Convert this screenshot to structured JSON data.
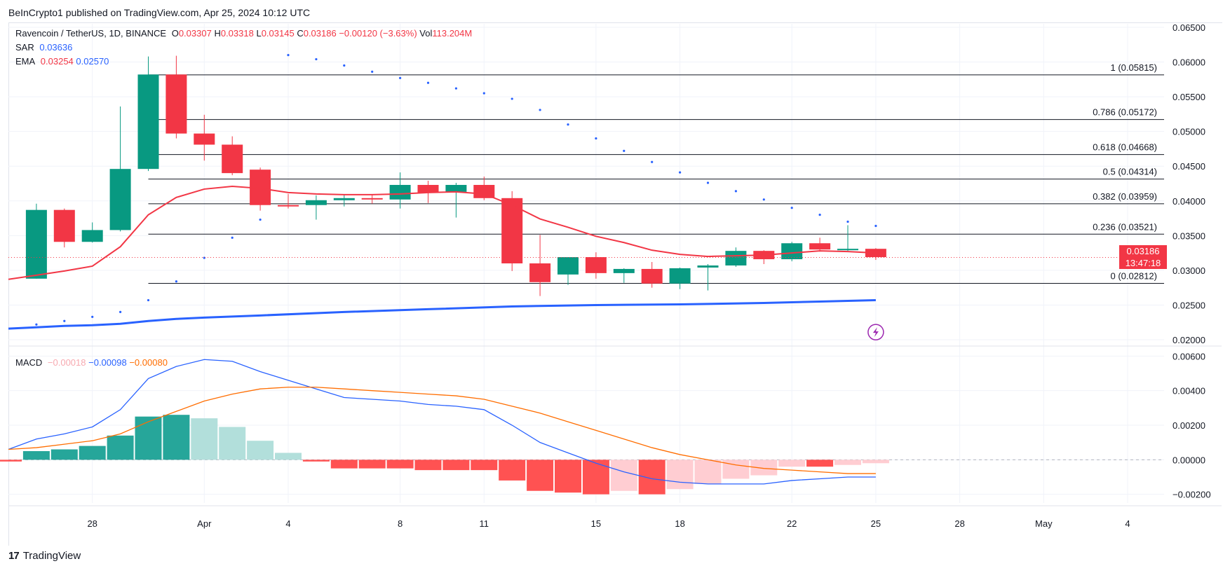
{
  "header": {
    "published": "BeInCrypto1 published on TradingView.com, Apr 25, 2024 10:12 UTC"
  },
  "symbol": {
    "name": "Ravencoin / TetherUS, 1D, BINANCE",
    "open_label": "O",
    "open": "0.03307",
    "high_label": "H",
    "high": "0.03318",
    "low_label": "L",
    "low": "0.03145",
    "close_label": "C",
    "close": "0.03186",
    "change": "−0.00120 (−3.63%)",
    "vol_label": "Vol",
    "vol": "113.204M"
  },
  "indicators": {
    "sar_label": "SAR",
    "sar_value": "0.03636",
    "ema_label": "EMA",
    "ema_value1": "0.03254",
    "ema_value2": "0.02570",
    "macd_label": "MACD",
    "macd_hist": "−0.00018",
    "macd_line": "−0.00098",
    "macd_signal": "−0.00080"
  },
  "price_tag": {
    "price": "0.03186",
    "countdown": "13:47:18"
  },
  "footer": {
    "logo": "17",
    "brand": "TradingView"
  },
  "colors": {
    "up": "#089981",
    "down": "#f23645",
    "ema_fast": "#f23645",
    "ema_slow": "#2962ff",
    "sar": "#2962ff",
    "macd": "#2962ff",
    "signal": "#ff6d00",
    "hist_up_strong": "#26a69a",
    "hist_up_weak": "#b2dfdb",
    "hist_down_strong": "#ff5252",
    "hist_down_weak": "#ffcdd2",
    "fib": "#131722"
  },
  "chart_data": {
    "type": "candlestick",
    "x_ticks": [
      {
        "label": "28",
        "day": 3
      },
      {
        "label": "Apr",
        "day": 7
      },
      {
        "label": "4",
        "day": 10
      },
      {
        "label": "8",
        "day": 14
      },
      {
        "label": "11",
        "day": 17
      },
      {
        "label": "15",
        "day": 21
      },
      {
        "label": "18",
        "day": 24
      },
      {
        "label": "22",
        "day": 28
      },
      {
        "label": "25",
        "day": 31
      },
      {
        "label": "28",
        "day": 34
      },
      {
        "label": "May",
        "day": 37
      },
      {
        "label": "4",
        "day": 40
      }
    ],
    "price_axis": {
      "min": 0.0195,
      "max": 0.0655,
      "ticks": [
        "0.06500",
        "0.06000",
        "0.05500",
        "0.05000",
        "0.04500",
        "0.04000",
        "0.03500",
        "0.03000",
        "0.02500",
        "0.02000"
      ]
    },
    "macd_axis": {
      "min": -0.0025,
      "max": 0.0065,
      "ticks": [
        "0.00600",
        "0.00400",
        "0.00200",
        "0.00000",
        "−0.00200"
      ]
    },
    "candles": [
      {
        "d": 1,
        "o": 0.0288,
        "h": 0.0396,
        "l": 0.0288,
        "c": 0.0387
      },
      {
        "d": 2,
        "o": 0.0387,
        "h": 0.0389,
        "l": 0.0333,
        "c": 0.0341
      },
      {
        "d": 3,
        "o": 0.0341,
        "h": 0.0369,
        "l": 0.034,
        "c": 0.0358
      },
      {
        "d": 4,
        "o": 0.0358,
        "h": 0.0536,
        "l": 0.0356,
        "c": 0.0446
      },
      {
        "d": 5,
        "o": 0.0446,
        "h": 0.0608,
        "l": 0.0443,
        "c": 0.0582
      },
      {
        "d": 6,
        "o": 0.0582,
        "h": 0.0609,
        "l": 0.049,
        "c": 0.0497
      },
      {
        "d": 7,
        "o": 0.0497,
        "h": 0.0524,
        "l": 0.0458,
        "c": 0.0481
      },
      {
        "d": 8,
        "o": 0.0481,
        "h": 0.0493,
        "l": 0.0437,
        "c": 0.044
      },
      {
        "d": 9,
        "o": 0.0445,
        "h": 0.0448,
        "l": 0.0386,
        "c": 0.0394
      },
      {
        "d": 10,
        "o": 0.0394,
        "h": 0.041,
        "l": 0.0389,
        "c": 0.0392
      },
      {
        "d": 11,
        "o": 0.0394,
        "h": 0.0408,
        "l": 0.0373,
        "c": 0.0401
      },
      {
        "d": 12,
        "o": 0.0401,
        "h": 0.0409,
        "l": 0.0392,
        "c": 0.0404
      },
      {
        "d": 13,
        "o": 0.0404,
        "h": 0.0409,
        "l": 0.0396,
        "c": 0.0402
      },
      {
        "d": 14,
        "o": 0.0402,
        "h": 0.0441,
        "l": 0.0389,
        "c": 0.0423
      },
      {
        "d": 15,
        "o": 0.0423,
        "h": 0.0429,
        "l": 0.0397,
        "c": 0.0412
      },
      {
        "d": 16,
        "o": 0.0413,
        "h": 0.0426,
        "l": 0.0376,
        "c": 0.0423
      },
      {
        "d": 17,
        "o": 0.0423,
        "h": 0.0435,
        "l": 0.0401,
        "c": 0.0404
      },
      {
        "d": 18,
        "o": 0.0404,
        "h": 0.0414,
        "l": 0.0299,
        "c": 0.031
      },
      {
        "d": 19,
        "o": 0.031,
        "h": 0.0351,
        "l": 0.0263,
        "c": 0.0283
      },
      {
        "d": 20,
        "o": 0.0294,
        "h": 0.0317,
        "l": 0.0279,
        "c": 0.0319
      },
      {
        "d": 21,
        "o": 0.0319,
        "h": 0.0326,
        "l": 0.0288,
        "c": 0.0296
      },
      {
        "d": 22,
        "o": 0.0296,
        "h": 0.0303,
        "l": 0.0282,
        "c": 0.0302
      },
      {
        "d": 23,
        "o": 0.0302,
        "h": 0.0312,
        "l": 0.0275,
        "c": 0.0281
      },
      {
        "d": 24,
        "o": 0.0281,
        "h": 0.0304,
        "l": 0.0273,
        "c": 0.0303
      },
      {
        "d": 25,
        "o": 0.0304,
        "h": 0.0309,
        "l": 0.0271,
        "c": 0.0307
      },
      {
        "d": 26,
        "o": 0.0307,
        "h": 0.0333,
        "l": 0.0305,
        "c": 0.0328
      },
      {
        "d": 27,
        "o": 0.0328,
        "h": 0.0329,
        "l": 0.0309,
        "c": 0.0316
      },
      {
        "d": 28,
        "o": 0.0316,
        "h": 0.0341,
        "l": 0.0313,
        "c": 0.0339
      },
      {
        "d": 29,
        "o": 0.0339,
        "h": 0.0347,
        "l": 0.0327,
        "c": 0.033
      },
      {
        "d": 30,
        "o": 0.033,
        "h": 0.0365,
        "l": 0.0328,
        "c": 0.0331
      },
      {
        "d": 31,
        "o": 0.0331,
        "h": 0.0332,
        "l": 0.0315,
        "c": 0.0319
      }
    ],
    "ema_fast": [
      [
        0,
        0.0287
      ],
      [
        1,
        0.0293
      ],
      [
        2,
        0.0299
      ],
      [
        3,
        0.0306
      ],
      [
        4,
        0.0334
      ],
      [
        5,
        0.038
      ],
      [
        6,
        0.0405
      ],
      [
        7,
        0.0417
      ],
      [
        8,
        0.0421
      ],
      [
        9,
        0.0418
      ],
      [
        10,
        0.0412
      ],
      [
        11,
        0.041
      ],
      [
        12,
        0.0409
      ],
      [
        13,
        0.0409
      ],
      [
        14,
        0.041
      ],
      [
        15,
        0.0412
      ],
      [
        16,
        0.0413
      ],
      [
        17,
        0.041
      ],
      [
        18,
        0.0394
      ],
      [
        19,
        0.0374
      ],
      [
        20,
        0.0362
      ],
      [
        21,
        0.0349
      ],
      [
        22,
        0.034
      ],
      [
        23,
        0.0329
      ],
      [
        24,
        0.0323
      ],
      [
        25,
        0.032
      ],
      [
        26,
        0.0321
      ],
      [
        27,
        0.0322
      ],
      [
        28,
        0.0325
      ],
      [
        29,
        0.0328
      ],
      [
        30,
        0.0327
      ],
      [
        31,
        0.0325
      ]
    ],
    "ema_slow": [
      [
        0,
        0.0216
      ],
      [
        1,
        0.0218
      ],
      [
        2,
        0.022
      ],
      [
        3,
        0.0221
      ],
      [
        4,
        0.0223
      ],
      [
        5,
        0.0227
      ],
      [
        6,
        0.023
      ],
      [
        7,
        0.0232
      ],
      [
        9,
        0.0235
      ],
      [
        12,
        0.024
      ],
      [
        15,
        0.0244
      ],
      [
        18,
        0.0248
      ],
      [
        21,
        0.025
      ],
      [
        24,
        0.0251
      ],
      [
        27,
        0.0253
      ],
      [
        29,
        0.0255
      ],
      [
        31,
        0.0257
      ]
    ],
    "sar": [
      [
        1,
        0.0222
      ],
      [
        2,
        0.0227
      ],
      [
        3,
        0.0233
      ],
      [
        4,
        0.024
      ],
      [
        5,
        0.0257
      ],
      [
        6,
        0.0284
      ],
      [
        7,
        0.0318
      ],
      [
        8,
        0.0347
      ],
      [
        9,
        0.0373
      ],
      [
        10,
        0.061
      ],
      [
        11,
        0.0604
      ],
      [
        12,
        0.0595
      ],
      [
        13,
        0.0586
      ],
      [
        14,
        0.0577
      ],
      [
        15,
        0.057
      ],
      [
        16,
        0.0562
      ],
      [
        17,
        0.0555
      ],
      [
        18,
        0.0547
      ],
      [
        19,
        0.0531
      ],
      [
        20,
        0.051
      ],
      [
        21,
        0.049
      ],
      [
        22,
        0.0472
      ],
      [
        23,
        0.0456
      ],
      [
        24,
        0.0441
      ],
      [
        25,
        0.0426
      ],
      [
        26,
        0.0414
      ],
      [
        27,
        0.0402
      ],
      [
        28,
        0.039
      ],
      [
        29,
        0.038
      ],
      [
        30,
        0.037
      ],
      [
        31,
        0.0364
      ]
    ],
    "fib_levels": [
      {
        "label": "1 (0.05815)",
        "value": 0.05815,
        "start_day": 5
      },
      {
        "label": "0.786 (0.05172)",
        "value": 0.05172,
        "start_day": 5
      },
      {
        "label": "0.618 (0.04668)",
        "value": 0.04668,
        "start_day": 5
      },
      {
        "label": "0.5 (0.04314)",
        "value": 0.04314,
        "start_day": 5
      },
      {
        "label": "0.382 (0.03959)",
        "value": 0.03959,
        "start_day": 5
      },
      {
        "label": "0.236 (0.03521)",
        "value": 0.03521,
        "start_day": 5
      },
      {
        "label": "0 (0.02812)",
        "value": 0.02812,
        "start_day": 5
      }
    ],
    "current_price": 0.03186,
    "macd_line": [
      [
        0,
        0.0006
      ],
      [
        1,
        0.0012
      ],
      [
        2,
        0.0015
      ],
      [
        3,
        0.0019
      ],
      [
        4,
        0.0029
      ],
      [
        5,
        0.0047
      ],
      [
        6,
        0.0054
      ],
      [
        7,
        0.0058
      ],
      [
        8,
        0.0057
      ],
      [
        9,
        0.0051
      ],
      [
        10,
        0.0046
      ],
      [
        11,
        0.0041
      ],
      [
        12,
        0.0036
      ],
      [
        13,
        0.0035
      ],
      [
        14,
        0.0034
      ],
      [
        15,
        0.0032
      ],
      [
        16,
        0.0031
      ],
      [
        17,
        0.0029
      ],
      [
        18,
        0.002
      ],
      [
        19,
        0.001
      ],
      [
        20,
        0.0004
      ],
      [
        21,
        -0.0002
      ],
      [
        22,
        -0.0007
      ],
      [
        23,
        -0.0011
      ],
      [
        24,
        -0.0013
      ],
      [
        25,
        -0.0014
      ],
      [
        26,
        -0.0014
      ],
      [
        27,
        -0.0014
      ],
      [
        28,
        -0.0012
      ],
      [
        29,
        -0.0011
      ],
      [
        30,
        -0.001
      ],
      [
        31,
        -0.001
      ]
    ],
    "signal_line": [
      [
        0,
        0.0006
      ],
      [
        1,
        0.0007
      ],
      [
        2,
        0.0009
      ],
      [
        3,
        0.0011
      ],
      [
        4,
        0.0015
      ],
      [
        5,
        0.0022
      ],
      [
        6,
        0.0028
      ],
      [
        7,
        0.0034
      ],
      [
        8,
        0.0038
      ],
      [
        9,
        0.0041
      ],
      [
        10,
        0.0042
      ],
      [
        11,
        0.0042
      ],
      [
        12,
        0.0041
      ],
      [
        13,
        0.004
      ],
      [
        14,
        0.0039
      ],
      [
        15,
        0.0038
      ],
      [
        16,
        0.0037
      ],
      [
        17,
        0.0035
      ],
      [
        18,
        0.0031
      ],
      [
        19,
        0.0027
      ],
      [
        20,
        0.0022
      ],
      [
        21,
        0.0017
      ],
      [
        22,
        0.0012
      ],
      [
        23,
        0.0007
      ],
      [
        24,
        0.0003
      ],
      [
        25,
        0.0
      ],
      [
        26,
        -0.0003
      ],
      [
        27,
        -0.0005
      ],
      [
        28,
        -0.0006
      ],
      [
        29,
        -0.0007
      ],
      [
        30,
        -0.0008
      ],
      [
        31,
        -0.0008
      ]
    ],
    "macd_hist": [
      [
        0,
        -0.0001
      ],
      [
        1,
        0.0005
      ],
      [
        2,
        0.0006
      ],
      [
        3,
        0.0008
      ],
      [
        4,
        0.0014
      ],
      [
        5,
        0.0025
      ],
      [
        6,
        0.0026
      ],
      [
        7,
        0.0024
      ],
      [
        8,
        0.0019
      ],
      [
        9,
        0.0011
      ],
      [
        10,
        0.0004
      ],
      [
        11,
        -0.0001
      ],
      [
        12,
        -0.0005
      ],
      [
        13,
        -0.0005
      ],
      [
        14,
        -0.0005
      ],
      [
        15,
        -0.0006
      ],
      [
        16,
        -0.0006
      ],
      [
        17,
        -0.0006
      ],
      [
        18,
        -0.0012
      ],
      [
        19,
        -0.0018
      ],
      [
        20,
        -0.0019
      ],
      [
        21,
        -0.002
      ],
      [
        22,
        -0.0018
      ],
      [
        23,
        -0.002
      ],
      [
        24,
        -0.0017
      ],
      [
        25,
        -0.0014
      ],
      [
        26,
        -0.0011
      ],
      [
        27,
        -0.0009
      ],
      [
        28,
        -0.0004
      ],
      [
        29,
        -0.0004
      ],
      [
        30,
        -0.0003
      ],
      [
        31,
        -0.0002
      ]
    ]
  }
}
